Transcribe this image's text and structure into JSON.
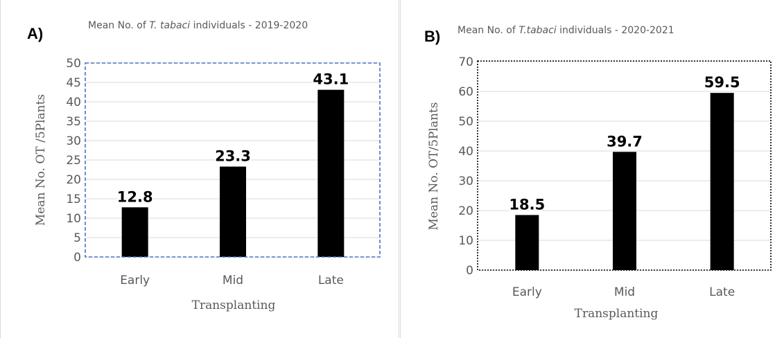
{
  "panels": [
    {
      "label": "A)",
      "title_pre": "Mean No. of ",
      "title_italic": "T. tabaci",
      "title_post": " individuals - 2019-2020"
    },
    {
      "label": "B)",
      "title_pre": "Mean No. of ",
      "title_italic": "T.tabaci",
      "title_post": " individuals - 2020-2021"
    }
  ],
  "chart_data": [
    {
      "type": "bar",
      "title": "Mean No. of T. tabaci individuals - 2019-2020",
      "categories": [
        "Early",
        "Mid",
        "Late"
      ],
      "values": [
        12.8,
        23.3,
        43.1
      ],
      "data_labels": [
        "12.8",
        "23.3",
        "43.1"
      ],
      "xlabel": "Transplanting",
      "ylabel": "Mean No. OT /5Plants",
      "ylim": [
        0,
        50
      ],
      "yticks": [
        0,
        5,
        10,
        15,
        20,
        25,
        30,
        35,
        40,
        45,
        50
      ],
      "grid": true,
      "bar_color": "#000000",
      "frame_color": "#4472c4",
      "frame_style": "dashed"
    },
    {
      "type": "bar",
      "title": "Mean No. of T.tabaci individuals - 2020-2021",
      "categories": [
        "Early",
        "Mid",
        "Late"
      ],
      "values": [
        18.5,
        39.7,
        59.5
      ],
      "data_labels": [
        "18.5",
        "39.7",
        "59.5"
      ],
      "xlabel": "Transplanting",
      "ylabel": "Mean No. OT/5Plants",
      "ylim": [
        0,
        70
      ],
      "yticks": [
        0,
        10,
        20,
        30,
        40,
        50,
        60,
        70
      ],
      "grid": true,
      "bar_color": "#000000",
      "frame_color": "#000000",
      "frame_style": "dotted"
    }
  ]
}
